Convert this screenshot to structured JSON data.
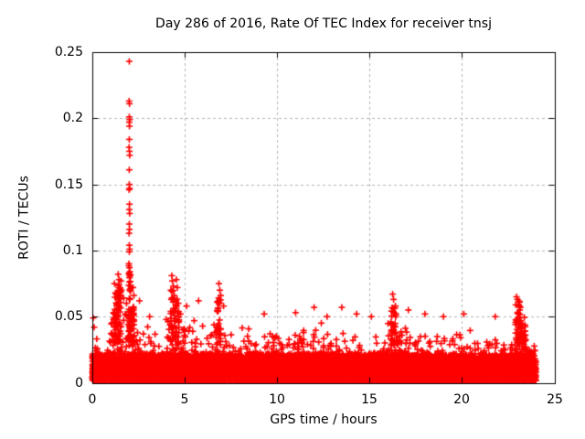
{
  "chart_data": {
    "type": "scatter",
    "title": "Day 286 of 2016, Rate Of TEC Index for receiver tnsj",
    "xlabel": "GPS time / hours",
    "ylabel": "ROTI / TECUs",
    "xlim": [
      0,
      25
    ],
    "ylim": [
      0,
      0.25
    ],
    "xticks": [
      0,
      5,
      10,
      15,
      20,
      25
    ],
    "xtick_labels": [
      "0",
      "5",
      "10",
      "15",
      "20",
      "25"
    ],
    "yticks": [
      0,
      0.05,
      0.1,
      0.15,
      0.2,
      0.25
    ],
    "ytick_labels": [
      "0",
      "0.05",
      "0.1",
      "0.15",
      "0.2",
      "0.25"
    ],
    "grid": true,
    "legend": "none",
    "marker": {
      "shape": "plus",
      "color": "#ff0000",
      "size": 7
    },
    "axis_color": "#000000",
    "grid_color": "#b4b4b4",
    "background_color": "#ffffff",
    "data_hours_range": [
      0,
      24
    ],
    "baseline_band": {
      "min_value": 0.0015,
      "core_top": 0.022,
      "points_per_bin_core": 160,
      "points_per_bin_tail": 95
    },
    "envelope_step_hours": 0.5,
    "envelope_band_top": [
      0.038,
      0.032,
      0.05,
      0.055,
      0.058,
      0.048,
      0.04,
      0.036,
      0.048,
      0.055,
      0.045,
      0.048,
      0.04,
      0.045,
      0.05,
      0.04,
      0.042,
      0.035,
      0.038,
      0.04,
      0.036,
      0.038,
      0.044,
      0.04,
      0.046,
      0.042,
      0.038,
      0.044,
      0.038,
      0.04,
      0.036,
      0.042,
      0.048,
      0.046,
      0.042,
      0.038,
      0.036,
      0.04,
      0.036,
      0.038,
      0.04,
      0.036,
      0.034,
      0.036,
      0.038,
      0.04,
      0.045,
      0.038
    ],
    "columns": [
      {
        "x": 1.25,
        "dx": 0.12,
        "vmin": 0.03,
        "vmax": 0.068,
        "n": 40
      },
      {
        "x": 1.45,
        "dx": 0.1,
        "vmin": 0.03,
        "vmax": 0.08,
        "n": 40
      },
      {
        "x": 2.02,
        "dx": 0.05,
        "vmin": 0.03,
        "vmax": 0.09,
        "n": 45
      },
      {
        "x": 2.2,
        "dx": 0.08,
        "vmin": 0.03,
        "vmax": 0.06,
        "n": 25
      },
      {
        "x": 4.35,
        "dx": 0.12,
        "vmin": 0.03,
        "vmax": 0.07,
        "n": 30
      },
      {
        "x": 4.6,
        "dx": 0.1,
        "vmin": 0.03,
        "vmax": 0.065,
        "n": 25
      },
      {
        "x": 6.85,
        "dx": 0.1,
        "vmin": 0.03,
        "vmax": 0.065,
        "n": 30
      },
      {
        "x": 16.3,
        "dx": 0.15,
        "vmin": 0.03,
        "vmax": 0.06,
        "n": 30
      },
      {
        "x": 23.05,
        "dx": 0.15,
        "vmin": 0.03,
        "vmax": 0.062,
        "n": 45
      },
      {
        "x": 23.3,
        "dx": 0.2,
        "vmin": 0.025,
        "vmax": 0.05,
        "n": 25
      }
    ],
    "outliers": [
      [
        2.0,
        0.243
      ],
      [
        1.99,
        0.213
      ],
      [
        2.01,
        0.211
      ],
      [
        2.0,
        0.201
      ],
      [
        2.02,
        0.199
      ],
      [
        2.0,
        0.197
      ],
      [
        2.01,
        0.194
      ],
      [
        2.0,
        0.184
      ],
      [
        1.99,
        0.178
      ],
      [
        2.01,
        0.175
      ],
      [
        2.02,
        0.172
      ],
      [
        2.0,
        0.161
      ],
      [
        2.0,
        0.15
      ],
      [
        2.02,
        0.147
      ],
      [
        1.99,
        0.146
      ],
      [
        2.01,
        0.135
      ],
      [
        2.0,
        0.131
      ],
      [
        2.02,
        0.128
      ],
      [
        2.0,
        0.12
      ],
      [
        2.01,
        0.116
      ],
      [
        1.99,
        0.113
      ],
      [
        2.0,
        0.104
      ],
      [
        2.02,
        0.101
      ],
      [
        2.0,
        0.099
      ],
      [
        1.98,
        0.09
      ],
      [
        2.01,
        0.087
      ],
      [
        2.03,
        0.084
      ],
      [
        0.05,
        0.049
      ],
      [
        0.1,
        0.042
      ],
      [
        1.2,
        0.075
      ],
      [
        1.25,
        0.068
      ],
      [
        1.4,
        0.082
      ],
      [
        1.45,
        0.078
      ],
      [
        1.42,
        0.072
      ],
      [
        1.55,
        0.077
      ],
      [
        1.58,
        0.07
      ],
      [
        1.7,
        0.064
      ],
      [
        1.85,
        0.06
      ],
      [
        2.2,
        0.072
      ],
      [
        2.25,
        0.066
      ],
      [
        2.55,
        0.062
      ],
      [
        3.1,
        0.05
      ],
      [
        4.3,
        0.081
      ],
      [
        4.33,
        0.077
      ],
      [
        4.38,
        0.073
      ],
      [
        4.55,
        0.078
      ],
      [
        4.6,
        0.072
      ],
      [
        5.1,
        0.058
      ],
      [
        5.75,
        0.062
      ],
      [
        6.85,
        0.075
      ],
      [
        6.9,
        0.07
      ],
      [
        6.95,
        0.066
      ],
      [
        7.1,
        0.058
      ],
      [
        9.3,
        0.052
      ],
      [
        11.0,
        0.053
      ],
      [
        12.0,
        0.057
      ],
      [
        12.7,
        0.05
      ],
      [
        13.5,
        0.057
      ],
      [
        14.3,
        0.052
      ],
      [
        15.1,
        0.05
      ],
      [
        16.25,
        0.067
      ],
      [
        16.3,
        0.063
      ],
      [
        16.4,
        0.058
      ],
      [
        17.1,
        0.055
      ],
      [
        18.0,
        0.052
      ],
      [
        19.0,
        0.05
      ],
      [
        20.1,
        0.052
      ],
      [
        21.8,
        0.05
      ],
      [
        22.95,
        0.065
      ],
      [
        23.0,
        0.063
      ],
      [
        23.05,
        0.061
      ],
      [
        23.1,
        0.058
      ]
    ]
  }
}
